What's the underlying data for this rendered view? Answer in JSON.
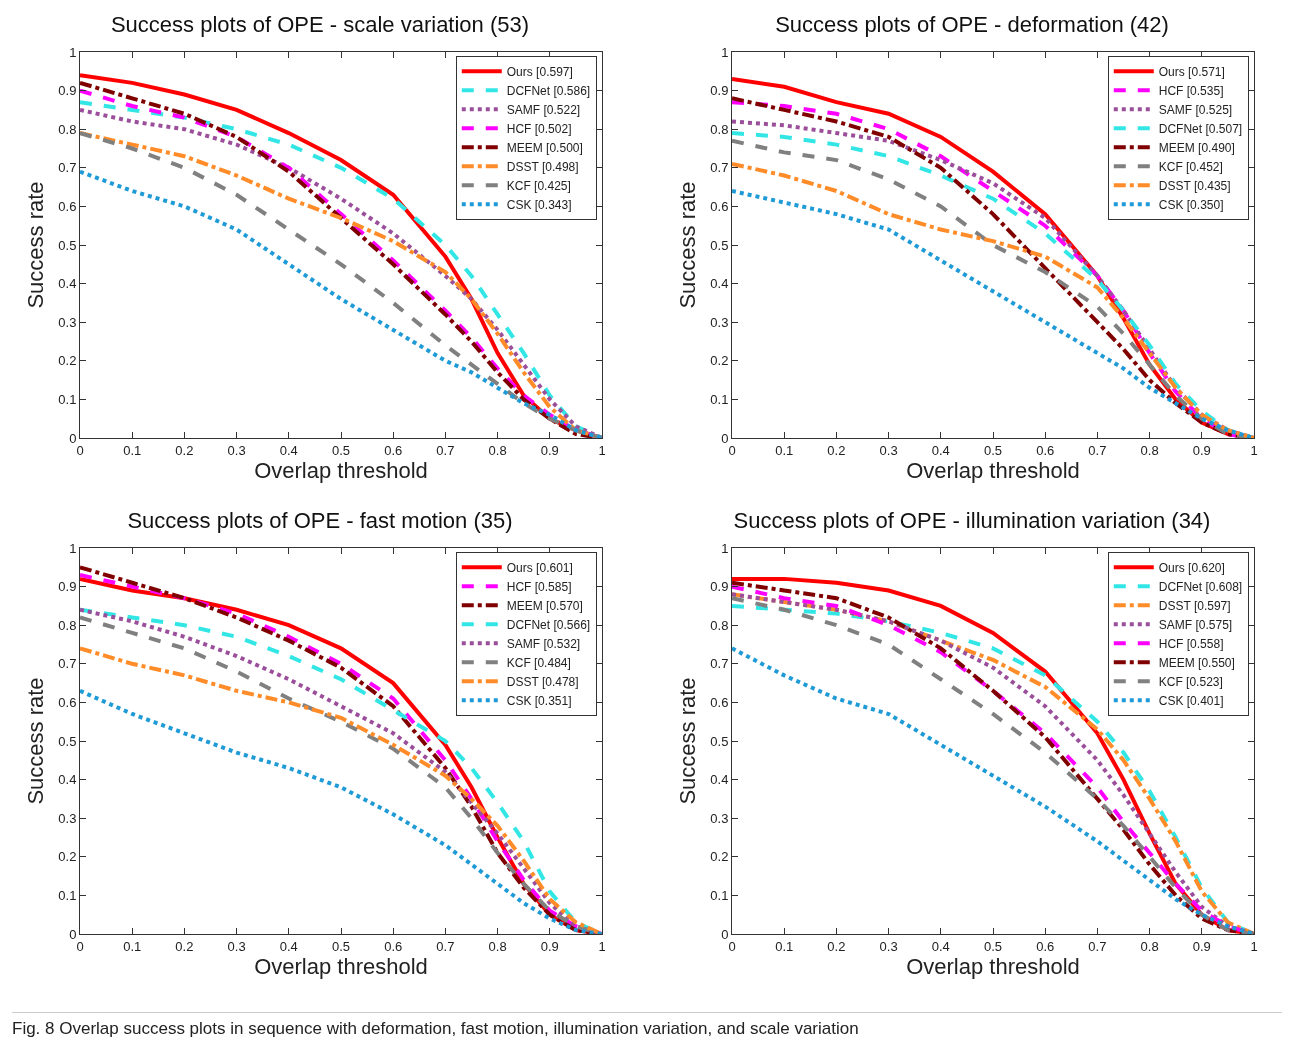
{
  "chart_data": [
    {
      "type": "line",
      "title": "Success plots of OPE - scale variation (53)",
      "xlabel": "Overlap threshold",
      "ylabel": "Success rate",
      "x": [
        0,
        0.1,
        0.2,
        0.3,
        0.4,
        0.5,
        0.6,
        0.7,
        0.75,
        0.8,
        0.85,
        0.9,
        0.95,
        1
      ],
      "xlim": [
        0,
        1
      ],
      "ylim": [
        0,
        1
      ],
      "xticks": [
        0,
        0.1,
        0.2,
        0.3,
        0.4,
        0.5,
        0.6,
        0.7,
        0.8,
        0.9,
        1
      ],
      "yticks": [
        0,
        0.1,
        0.2,
        0.3,
        0.4,
        0.5,
        0.6,
        0.7,
        0.8,
        0.9,
        1
      ],
      "grid": false,
      "legend": "top right",
      "marker": "none",
      "series": [
        {
          "name": "Ours [0.597]",
          "color": "#ff0000",
          "line_style": "solid",
          "values": [
            0.94,
            0.92,
            0.89,
            0.85,
            0.79,
            0.72,
            0.63,
            0.47,
            0.36,
            0.22,
            0.11,
            0.05,
            0.02,
            0
          ]
        },
        {
          "name": "DCFNet [0.586]",
          "color": "#33e6e6",
          "line_style": "dashed",
          "values": [
            0.87,
            0.85,
            0.83,
            0.8,
            0.76,
            0.7,
            0.62,
            0.5,
            0.42,
            0.32,
            0.22,
            0.11,
            0.03,
            0
          ]
        },
        {
          "name": "SAMF [0.522]",
          "color": "#9b4f9b",
          "line_style": "dotted",
          "values": [
            0.85,
            0.82,
            0.8,
            0.76,
            0.7,
            0.62,
            0.53,
            0.42,
            0.36,
            0.28,
            0.19,
            0.1,
            0.03,
            0
          ]
        },
        {
          "name": "HCF [0.502]",
          "color": "#ff00ff",
          "line_style": "dashed",
          "values": [
            0.9,
            0.86,
            0.83,
            0.78,
            0.7,
            0.58,
            0.46,
            0.33,
            0.26,
            0.18,
            0.11,
            0.06,
            0.02,
            0
          ]
        },
        {
          "name": "MEEM [0.500]",
          "color": "#800000",
          "line_style": "dashdot",
          "values": [
            0.92,
            0.88,
            0.84,
            0.78,
            0.69,
            0.57,
            0.45,
            0.32,
            0.25,
            0.17,
            0.1,
            0.05,
            0.01,
            0
          ]
        },
        {
          "name": "DSST [0.498]",
          "color": "#ff8c28",
          "line_style": "dashdot",
          "values": [
            0.79,
            0.76,
            0.73,
            0.68,
            0.62,
            0.57,
            0.51,
            0.43,
            0.36,
            0.27,
            0.17,
            0.08,
            0.02,
            0
          ]
        },
        {
          "name": "KCF [0.425]",
          "color": "#808080",
          "line_style": "dashed",
          "values": [
            0.79,
            0.75,
            0.7,
            0.63,
            0.54,
            0.45,
            0.35,
            0.24,
            0.19,
            0.14,
            0.09,
            0.05,
            0.02,
            0
          ]
        },
        {
          "name": "CSK [0.343]",
          "color": "#1e9bd7",
          "line_style": "dotted",
          "values": [
            0.69,
            0.64,
            0.6,
            0.54,
            0.45,
            0.36,
            0.28,
            0.2,
            0.17,
            0.13,
            0.09,
            0.06,
            0.02,
            0
          ]
        }
      ]
    },
    {
      "type": "line",
      "title": "Success plots of OPE - deformation (42)",
      "xlabel": "Overlap threshold",
      "ylabel": "Success rate",
      "x": [
        0,
        0.1,
        0.2,
        0.3,
        0.4,
        0.5,
        0.6,
        0.7,
        0.75,
        0.8,
        0.85,
        0.9,
        0.95,
        1
      ],
      "xlim": [
        0,
        1
      ],
      "ylim": [
        0,
        1
      ],
      "xticks": [
        0,
        0.1,
        0.2,
        0.3,
        0.4,
        0.5,
        0.6,
        0.7,
        0.8,
        0.9,
        1
      ],
      "yticks": [
        0,
        0.1,
        0.2,
        0.3,
        0.4,
        0.5,
        0.6,
        0.7,
        0.8,
        0.9,
        1
      ],
      "grid": false,
      "legend": "top right",
      "marker": "none",
      "series": [
        {
          "name": "Ours [0.571]",
          "color": "#ff0000",
          "line_style": "solid",
          "values": [
            0.93,
            0.91,
            0.87,
            0.84,
            0.78,
            0.69,
            0.58,
            0.42,
            0.31,
            0.19,
            0.1,
            0.04,
            0.01,
            0
          ]
        },
        {
          "name": "HCF [0.535]",
          "color": "#ff00ff",
          "line_style": "dashed",
          "values": [
            0.87,
            0.86,
            0.84,
            0.8,
            0.73,
            0.64,
            0.55,
            0.42,
            0.33,
            0.22,
            0.12,
            0.05,
            0.01,
            0
          ]
        },
        {
          "name": "SAMF [0.525]",
          "color": "#9b4f9b",
          "line_style": "dotted",
          "values": [
            0.82,
            0.81,
            0.79,
            0.77,
            0.72,
            0.66,
            0.57,
            0.42,
            0.33,
            0.23,
            0.13,
            0.06,
            0.02,
            0
          ]
        },
        {
          "name": "DCFNet [0.507]",
          "color": "#33e6e6",
          "line_style": "dashed",
          "values": [
            0.79,
            0.78,
            0.76,
            0.73,
            0.68,
            0.62,
            0.53,
            0.41,
            0.33,
            0.24,
            0.14,
            0.07,
            0.02,
            0
          ]
        },
        {
          "name": "MEEM [0.490]",
          "color": "#800000",
          "line_style": "dashdot",
          "values": [
            0.88,
            0.85,
            0.82,
            0.78,
            0.7,
            0.58,
            0.44,
            0.3,
            0.23,
            0.15,
            0.09,
            0.04,
            0.01,
            0
          ]
        },
        {
          "name": "KCF [0.452]",
          "color": "#808080",
          "line_style": "dashed",
          "values": [
            0.77,
            0.74,
            0.72,
            0.67,
            0.6,
            0.5,
            0.43,
            0.34,
            0.27,
            0.19,
            0.11,
            0.05,
            0.01,
            0
          ]
        },
        {
          "name": "DSST [0.435]",
          "color": "#ff8c28",
          "line_style": "dashdot",
          "values": [
            0.71,
            0.68,
            0.64,
            0.58,
            0.54,
            0.51,
            0.47,
            0.39,
            0.31,
            0.22,
            0.13,
            0.06,
            0.02,
            0
          ]
        },
        {
          "name": "CSK [0.350]",
          "color": "#1e9bd7",
          "line_style": "dotted",
          "values": [
            0.64,
            0.61,
            0.58,
            0.54,
            0.46,
            0.38,
            0.3,
            0.22,
            0.18,
            0.13,
            0.09,
            0.05,
            0.02,
            0
          ]
        }
      ]
    },
    {
      "type": "line",
      "title": "Success plots of OPE - fast motion (35)",
      "xlabel": "Overlap threshold",
      "ylabel": "Success rate",
      "x": [
        0,
        0.1,
        0.2,
        0.3,
        0.4,
        0.5,
        0.6,
        0.7,
        0.75,
        0.8,
        0.85,
        0.9,
        0.95,
        1
      ],
      "xlim": [
        0,
        1
      ],
      "ylim": [
        0,
        1
      ],
      "xticks": [
        0,
        0.1,
        0.2,
        0.3,
        0.4,
        0.5,
        0.6,
        0.7,
        0.8,
        0.9,
        1
      ],
      "yticks": [
        0,
        0.1,
        0.2,
        0.3,
        0.4,
        0.5,
        0.6,
        0.7,
        0.8,
        0.9,
        1
      ],
      "grid": false,
      "legend": "top right",
      "marker": "none",
      "series": [
        {
          "name": "Ours [0.601]",
          "color": "#ff0000",
          "line_style": "solid",
          "values": [
            0.92,
            0.89,
            0.87,
            0.84,
            0.8,
            0.74,
            0.65,
            0.49,
            0.38,
            0.25,
            0.13,
            0.05,
            0.01,
            0
          ]
        },
        {
          "name": "HCF [0.585]",
          "color": "#ff00ff",
          "line_style": "dashed",
          "values": [
            0.93,
            0.9,
            0.87,
            0.83,
            0.77,
            0.7,
            0.61,
            0.45,
            0.35,
            0.24,
            0.14,
            0.06,
            0.02,
            0
          ]
        },
        {
          "name": "MEEM [0.570]",
          "color": "#800000",
          "line_style": "dashdot",
          "values": [
            0.95,
            0.91,
            0.87,
            0.82,
            0.76,
            0.69,
            0.59,
            0.43,
            0.33,
            0.21,
            0.12,
            0.05,
            0.01,
            0
          ]
        },
        {
          "name": "DCFNet [0.566]",
          "color": "#33e6e6",
          "line_style": "dashed",
          "values": [
            0.84,
            0.82,
            0.8,
            0.77,
            0.72,
            0.66,
            0.58,
            0.5,
            0.43,
            0.34,
            0.24,
            0.11,
            0.03,
            0
          ]
        },
        {
          "name": "SAMF [0.532]",
          "color": "#9b4f9b",
          "line_style": "dotted",
          "values": [
            0.84,
            0.81,
            0.77,
            0.72,
            0.66,
            0.59,
            0.52,
            0.42,
            0.34,
            0.26,
            0.17,
            0.08,
            0.02,
            0
          ]
        },
        {
          "name": "KCF [0.484]",
          "color": "#808080",
          "line_style": "dashed",
          "values": [
            0.82,
            0.78,
            0.74,
            0.68,
            0.61,
            0.55,
            0.48,
            0.38,
            0.3,
            0.21,
            0.13,
            0.06,
            0.02,
            0
          ]
        },
        {
          "name": "DSST [0.478]",
          "color": "#ff8c28",
          "line_style": "dashdot",
          "values": [
            0.74,
            0.7,
            0.67,
            0.63,
            0.6,
            0.56,
            0.49,
            0.41,
            0.35,
            0.28,
            0.19,
            0.09,
            0.03,
            0
          ]
        },
        {
          "name": "CSK [0.351]",
          "color": "#1e9bd7",
          "line_style": "dotted",
          "values": [
            0.63,
            0.57,
            0.52,
            0.47,
            0.43,
            0.38,
            0.31,
            0.23,
            0.18,
            0.13,
            0.08,
            0.04,
            0.01,
            0
          ]
        }
      ]
    },
    {
      "type": "line",
      "title": "Success plots of OPE - illumination variation (34)",
      "xlabel": "Overlap threshold",
      "ylabel": "Success rate",
      "x": [
        0,
        0.1,
        0.2,
        0.3,
        0.4,
        0.5,
        0.6,
        0.7,
        0.75,
        0.8,
        0.85,
        0.9,
        0.95,
        1
      ],
      "xlim": [
        0,
        1
      ],
      "ylim": [
        0,
        1
      ],
      "xticks": [
        0,
        0.1,
        0.2,
        0.3,
        0.4,
        0.5,
        0.6,
        0.7,
        0.8,
        0.9,
        1
      ],
      "yticks": [
        0,
        0.1,
        0.2,
        0.3,
        0.4,
        0.5,
        0.6,
        0.7,
        0.8,
        0.9,
        1
      ],
      "grid": false,
      "legend": "top right",
      "marker": "none",
      "annotations": [
        "Fig. 8 Overlap success plots in sequence with deformation, fast motion, illumination variation, and scale variation"
      ],
      "series": [
        {
          "name": "Ours [0.620]",
          "color": "#ff0000",
          "line_style": "solid",
          "values": [
            0.92,
            0.92,
            0.91,
            0.89,
            0.85,
            0.78,
            0.68,
            0.52,
            0.4,
            0.26,
            0.13,
            0.05,
            0.01,
            0
          ]
        },
        {
          "name": "DCFNet [0.608]",
          "color": "#33e6e6",
          "line_style": "dashed",
          "values": [
            0.85,
            0.84,
            0.83,
            0.81,
            0.78,
            0.74,
            0.67,
            0.55,
            0.47,
            0.37,
            0.25,
            0.12,
            0.03,
            0
          ]
        },
        {
          "name": "DSST [0.597]",
          "color": "#ff8c28",
          "line_style": "dashdot",
          "values": [
            0.88,
            0.86,
            0.84,
            0.81,
            0.76,
            0.71,
            0.64,
            0.53,
            0.45,
            0.35,
            0.24,
            0.11,
            0.03,
            0
          ]
        },
        {
          "name": "SAMF [0.575]",
          "color": "#9b4f9b",
          "line_style": "dotted",
          "values": [
            0.88,
            0.86,
            0.84,
            0.81,
            0.76,
            0.69,
            0.59,
            0.45,
            0.36,
            0.26,
            0.16,
            0.07,
            0.02,
            0
          ]
        },
        {
          "name": "HCF [0.558]",
          "color": "#ff00ff",
          "line_style": "dashed",
          "values": [
            0.9,
            0.87,
            0.85,
            0.8,
            0.73,
            0.63,
            0.52,
            0.38,
            0.29,
            0.21,
            0.13,
            0.06,
            0.02,
            0
          ]
        },
        {
          "name": "MEEM [0.550]",
          "color": "#800000",
          "line_style": "dashdot",
          "values": [
            0.91,
            0.89,
            0.87,
            0.82,
            0.74,
            0.63,
            0.51,
            0.35,
            0.27,
            0.18,
            0.1,
            0.04,
            0.01,
            0
          ]
        },
        {
          "name": "KCF [0.523]",
          "color": "#808080",
          "line_style": "dashed",
          "values": [
            0.87,
            0.84,
            0.8,
            0.75,
            0.66,
            0.57,
            0.47,
            0.35,
            0.28,
            0.2,
            0.12,
            0.05,
            0.01,
            0
          ]
        },
        {
          "name": "CSK [0.401]",
          "color": "#1e9bd7",
          "line_style": "dotted",
          "values": [
            0.74,
            0.67,
            0.61,
            0.57,
            0.49,
            0.41,
            0.33,
            0.24,
            0.19,
            0.14,
            0.09,
            0.05,
            0.02,
            0
          ]
        }
      ]
    }
  ]
}
